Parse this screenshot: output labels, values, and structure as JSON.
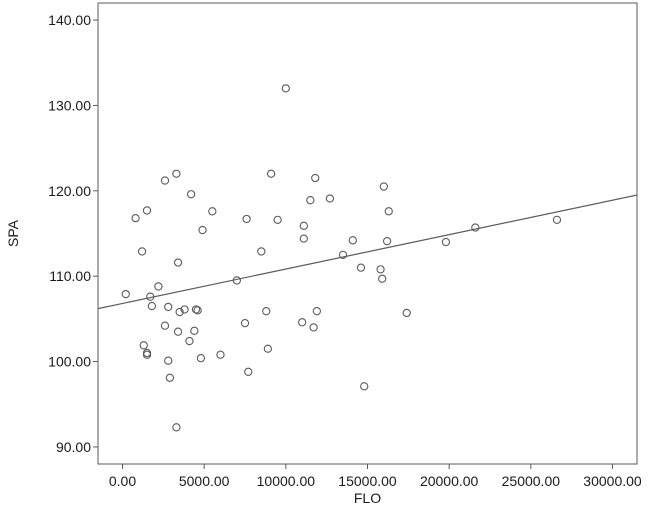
{
  "chart_data": {
    "type": "scatter",
    "title": "",
    "xlabel": "FLO",
    "ylabel": "SPA",
    "xlim": [
      -1500,
      31500
    ],
    "ylim": [
      88,
      142
    ],
    "xticks": [
      0,
      5000,
      10000,
      15000,
      20000,
      25000,
      30000
    ],
    "xtick_labels": [
      "0.00",
      "5000.00",
      "10000.00",
      "15000.00",
      "20000.00",
      "25000.00",
      "30000.00"
    ],
    "yticks": [
      90,
      100,
      110,
      120,
      130,
      140
    ],
    "ytick_labels": [
      "90.00",
      "100.00",
      "110.00",
      "120.00",
      "130.00",
      "140.00"
    ],
    "grid": false,
    "legend": "none",
    "colors": {
      "marker": "#5a5a5a",
      "fit_line": "#5a5a5a",
      "axes": "#5a5a5a",
      "background": "#ffffff"
    },
    "series": [
      {
        "points": [
          [
            200,
            107.9
          ],
          [
            800,
            116.8
          ],
          [
            1200,
            112.9
          ],
          [
            1300,
            101.9
          ],
          [
            1500,
            117.7
          ],
          [
            1500,
            101.0
          ],
          [
            1500,
            100.8
          ],
          [
            1700,
            107.6
          ],
          [
            1800,
            106.5
          ],
          [
            2200,
            108.8
          ],
          [
            2600,
            121.2
          ],
          [
            2600,
            104.2
          ],
          [
            2800,
            106.4
          ],
          [
            2800,
            100.1
          ],
          [
            2900,
            98.1
          ],
          [
            3300,
            92.3
          ],
          [
            3300,
            122.0
          ],
          [
            3400,
            111.6
          ],
          [
            3400,
            103.5
          ],
          [
            3500,
            105.8
          ],
          [
            3800,
            106.1
          ],
          [
            4100,
            102.4
          ],
          [
            4200,
            119.6
          ],
          [
            4400,
            103.6
          ],
          [
            4500,
            106.1
          ],
          [
            4600,
            106.0
          ],
          [
            4800,
            100.4
          ],
          [
            4900,
            115.4
          ],
          [
            5500,
            117.6
          ],
          [
            6000,
            100.8
          ],
          [
            7000,
            109.5
          ],
          [
            7500,
            104.5
          ],
          [
            7600,
            116.7
          ],
          [
            7700,
            98.8
          ],
          [
            8500,
            112.9
          ],
          [
            8800,
            105.9
          ],
          [
            8900,
            101.5
          ],
          [
            9100,
            122.0
          ],
          [
            9500,
            116.6
          ],
          [
            10000,
            132.0
          ],
          [
            11000,
            104.6
          ],
          [
            11100,
            114.4
          ],
          [
            11100,
            115.9
          ],
          [
            11500,
            118.9
          ],
          [
            11700,
            104.0
          ],
          [
            11800,
            121.5
          ],
          [
            11900,
            105.9
          ],
          [
            12700,
            119.1
          ],
          [
            13500,
            112.5
          ],
          [
            14100,
            114.2
          ],
          [
            14600,
            111.0
          ],
          [
            14800,
            97.1
          ],
          [
            15800,
            110.8
          ],
          [
            15900,
            109.7
          ],
          [
            16000,
            120.5
          ],
          [
            16200,
            114.1
          ],
          [
            16300,
            117.6
          ],
          [
            17400,
            105.7
          ],
          [
            19800,
            114.0
          ],
          [
            21600,
            115.7
          ],
          [
            26600,
            116.6
          ]
        ]
      }
    ],
    "fit_line": {
      "x": [
        -1500,
        31500
      ],
      "y": [
        106.2,
        119.5
      ]
    }
  }
}
